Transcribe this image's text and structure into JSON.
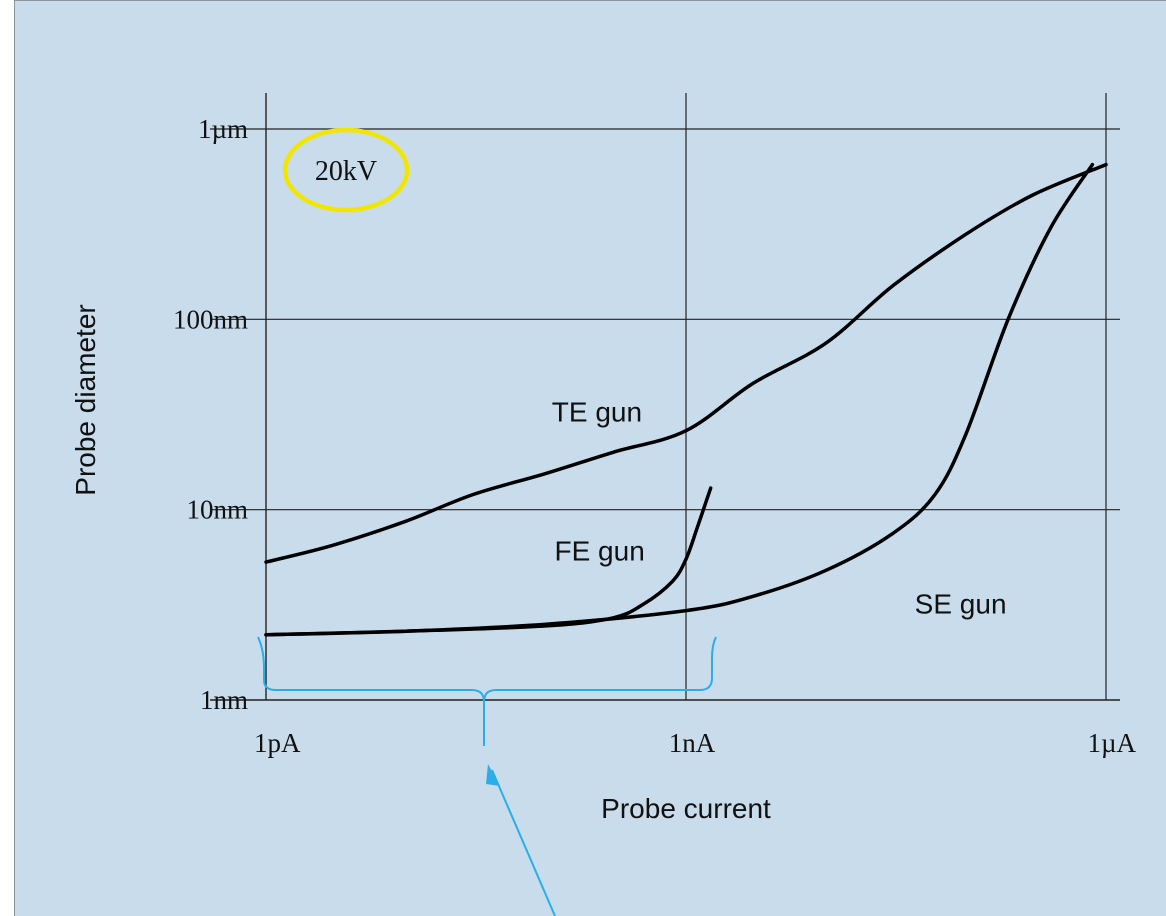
{
  "chart_data": {
    "type": "line",
    "xlabel": "Probe current",
    "ylabel": "Probe diameter",
    "x_scale": "log",
    "y_scale": "log",
    "x_ticks": [
      {
        "label": "1pA",
        "value": 1e-12
      },
      {
        "label": "1nA",
        "value": 1e-09
      },
      {
        "label": "1µA",
        "value": 1e-06
      }
    ],
    "y_ticks": [
      {
        "label": "1nm",
        "value": 1e-09
      },
      {
        "label": "10nm",
        "value": 1e-08
      },
      {
        "label": "100nm",
        "value": 1e-07
      },
      {
        "label": "1µm",
        "value": 1e-06
      }
    ],
    "xlim": [
      1e-12,
      1e-06
    ],
    "ylim": [
      1e-09,
      1e-06
    ],
    "grid": true,
    "annotations": {
      "voltage": "20kV"
    },
    "series": [
      {
        "name": "TE gun",
        "color": "#000000",
        "points": [
          [
            1e-12,
            5.3e-09
          ],
          [
            3e-12,
            6.5e-09
          ],
          [
            1e-11,
            8.7e-09
          ],
          [
            3e-11,
            1.2e-08
          ],
          [
            1e-10,
            1.55e-08
          ],
          [
            3e-10,
            2e-08
          ],
          [
            1e-09,
            2.6e-08
          ],
          [
            3e-09,
            4.6e-08
          ],
          [
            1e-08,
            7.5e-08
          ],
          [
            3e-08,
            1.5e-07
          ],
          [
            1e-07,
            2.8e-07
          ],
          [
            3e-07,
            4.5e-07
          ],
          [
            1e-06,
            6.5e-07
          ]
        ]
      },
      {
        "name": "FE gun",
        "color": "#000000",
        "points": [
          [
            1e-12,
            2.2e-09
          ],
          [
            1e-11,
            2.3e-09
          ],
          [
            1e-10,
            2.45e-09
          ],
          [
            3e-10,
            2.7e-09
          ],
          [
            5e-10,
            3.2e-09
          ],
          [
            8e-10,
            4.2e-09
          ],
          [
            1e-09,
            5.5e-09
          ],
          [
            1.2e-09,
            8e-09
          ],
          [
            1.5e-09,
            1.3e-08
          ]
        ]
      },
      {
        "name": "SE gun",
        "color": "#000000",
        "points": [
          [
            1e-12,
            2.2e-09
          ],
          [
            1e-11,
            2.3e-09
          ],
          [
            1e-10,
            2.5e-09
          ],
          [
            1e-09,
            2.95e-09
          ],
          [
            3e-09,
            3.5e-09
          ],
          [
            1e-08,
            4.8e-09
          ],
          [
            3e-08,
            7.5e-09
          ],
          [
            6e-08,
            1.2e-08
          ],
          [
            1e-07,
            2.5e-08
          ],
          [
            2e-07,
            1e-07
          ],
          [
            4e-07,
            3e-07
          ],
          [
            8e-07,
            6.5e-07
          ]
        ]
      }
    ]
  }
}
